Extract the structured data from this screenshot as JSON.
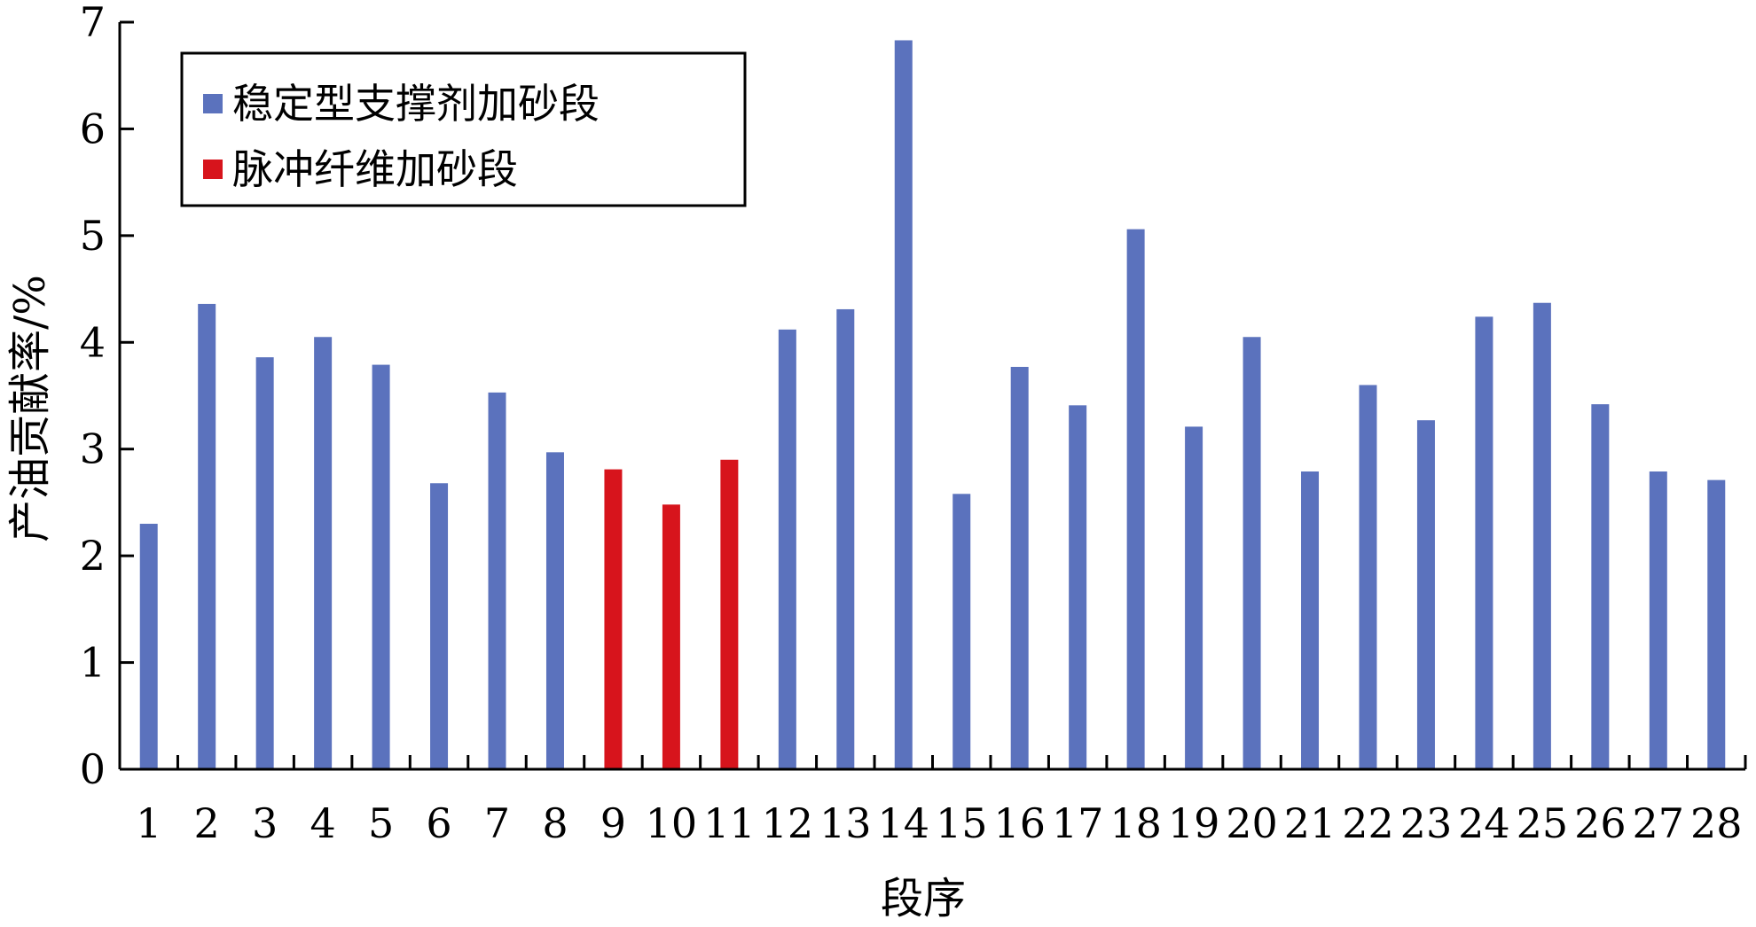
{
  "colors": {
    "stable_series": "#5b72bd",
    "pulse_series": "#d7141c",
    "axis": "#000000",
    "background": "#ffffff"
  },
  "chart_data": {
    "type": "bar",
    "title": "",
    "xlabel": "段序",
    "ylabel": "产油贡献率/%",
    "ylim": [
      0,
      7
    ],
    "yticks": [
      0,
      1,
      2,
      3,
      4,
      5,
      6,
      7
    ],
    "grid": false,
    "legend_position": "top-left",
    "categories": [
      "1",
      "2",
      "3",
      "4",
      "5",
      "6",
      "7",
      "8",
      "9",
      "10",
      "11",
      "12",
      "13",
      "14",
      "15",
      "16",
      "17",
      "18",
      "19",
      "20",
      "21",
      "22",
      "23",
      "24",
      "25",
      "26",
      "27",
      "28"
    ],
    "values": [
      2.3,
      4.36,
      3.86,
      4.05,
      3.79,
      2.68,
      3.53,
      2.97,
      2.81,
      2.48,
      2.9,
      4.12,
      4.31,
      6.83,
      2.58,
      3.77,
      3.41,
      5.06,
      3.21,
      4.05,
      2.79,
      3.6,
      3.27,
      4.24,
      4.37,
      3.42,
      2.79,
      2.71
    ],
    "series": [
      {
        "name": "稳定型支撑剂加砂段",
        "color": "#5b72bd",
        "categories": [
          "1",
          "2",
          "3",
          "4",
          "5",
          "6",
          "7",
          "8",
          "12",
          "13",
          "14",
          "15",
          "16",
          "17",
          "18",
          "19",
          "20",
          "21",
          "22",
          "23",
          "24",
          "25",
          "26",
          "27",
          "28"
        ]
      },
      {
        "name": "脉冲纤维加砂段",
        "color": "#d7141c",
        "categories": [
          "9",
          "10",
          "11"
        ]
      }
    ]
  }
}
